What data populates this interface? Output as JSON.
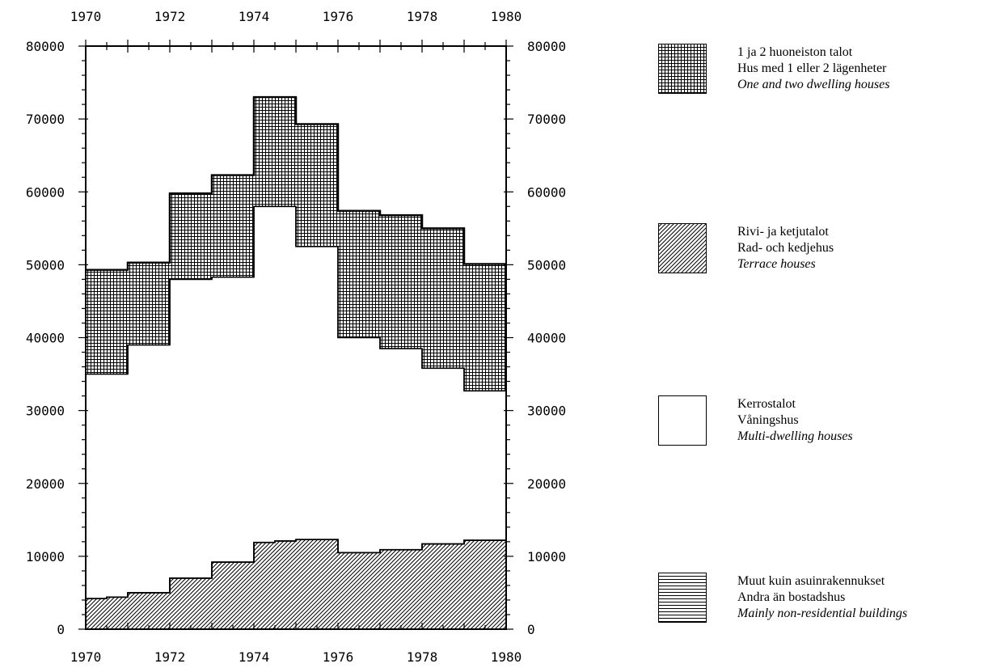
{
  "chart_data": {
    "type": "area",
    "stacked": true,
    "step": true,
    "x_axis": {
      "min": 1970,
      "max": 1980,
      "tick_labels": [
        "1970",
        "1972",
        "1974",
        "1976",
        "1978",
        "1980"
      ]
    },
    "y_axis": {
      "min": 0,
      "max": 80000,
      "tick_labels": [
        "0",
        "10000",
        "20000",
        "30000",
        "40000",
        "50000",
        "60000",
        "70000",
        "80000"
      ]
    },
    "x_bins": [
      1970,
      1970.5,
      1971,
      1972,
      1973,
      1974,
      1974.5,
      1975,
      1976,
      1977,
      1978,
      1979,
      1980
    ],
    "series": [
      {
        "id": "non_residential",
        "fill": "horizontal-lines",
        "values": [
          4200,
          4400,
          5000,
          7000,
          9200,
          11900,
          12100,
          12300,
          10500,
          10900,
          11700,
          12200
        ]
      },
      {
        "id": "terrace",
        "fill": "diagonal-hatch",
        "values": [
          4200,
          4400,
          5000,
          7000,
          9200,
          11900,
          12100,
          12300,
          10500,
          10900,
          11700,
          12200
        ]
      },
      {
        "id": "multi_dwelling",
        "fill": "white",
        "values": [
          35000,
          35000,
          39000,
          48000,
          48300,
          58000,
          58000,
          52500,
          40000,
          38500,
          35800,
          32700
        ]
      },
      {
        "id": "one_two_dwelling",
        "fill": "crosshatch-grid",
        "values": [
          49300,
          49300,
          50300,
          59800,
          62300,
          73000,
          73000,
          69300,
          57400,
          56800,
          55000,
          50100
        ]
      }
    ]
  },
  "legend": [
    {
      "pattern": "crosshatch-grid",
      "fi": "1 ja 2 huoneiston talot",
      "sv": "Hus med 1 eller 2 lägenheter",
      "en": "One and two dwelling houses"
    },
    {
      "pattern": "diagonal-hatch",
      "fi": "Rivi- ja ketjutalot",
      "sv": "Rad- och kedjehus",
      "en": "Terrace houses"
    },
    {
      "pattern": "white",
      "fi": "Kerrostalot",
      "sv": "Våningshus",
      "en": "Multi-dwelling houses"
    },
    {
      "pattern": "horizontal-lines",
      "fi": "Muut kuin asuinrakennukset",
      "sv": "Andra än bostadshus",
      "en": "Mainly non-residential buildings"
    }
  ]
}
